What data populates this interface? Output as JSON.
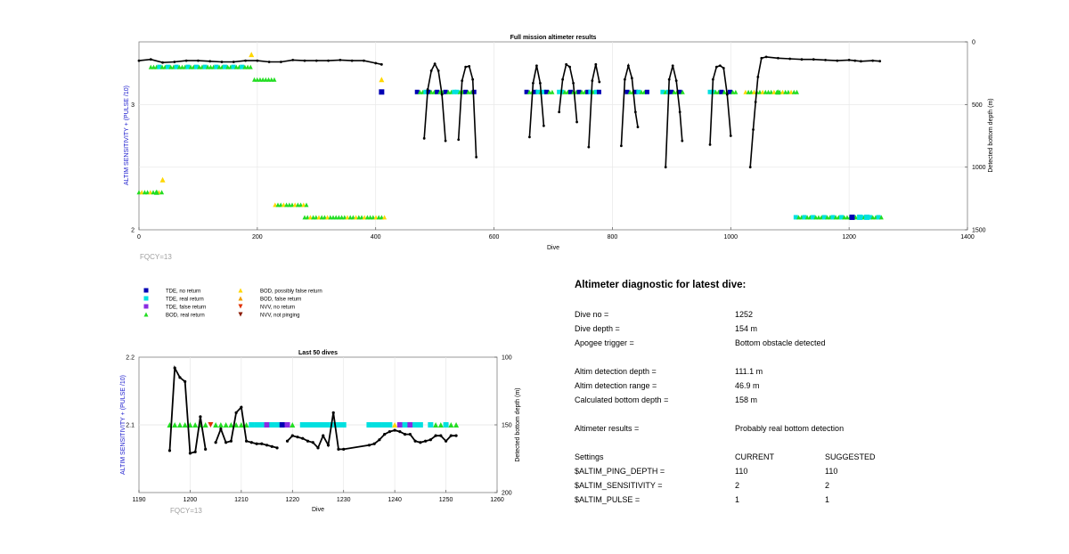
{
  "chart_data": [
    {
      "type": "scatter",
      "title": "Full mission altimeter results",
      "xlabel": "Dive",
      "ylabel_left": "ALTIM SENSITIVITY + (PULSE /10)",
      "ylabel_right": "Detected bottom depth (m)",
      "xlim": [
        0,
        1400
      ],
      "ylim_left": [
        2,
        3.5
      ],
      "ylim_right": [
        1500,
        0
      ],
      "xticks": [
        "0",
        "200",
        "400",
        "600",
        "800",
        "1000",
        "1200",
        "1400"
      ],
      "yticks_left": [
        "2",
        "3"
      ],
      "yticks_right": [
        "0",
        "500",
        "1000",
        "1500"
      ],
      "grid": true,
      "note": "FQCY=13",
      "depth_series": {
        "segments": [
          {
            "x": [
              0,
              20,
              40,
              60,
              80,
              100,
              120,
              140,
              160,
              180,
              200,
              220,
              240,
              260,
              280,
              300,
              320,
              340,
              360,
              380,
              400,
              410
            ],
            "y": [
              150,
              140,
              165,
              160,
              150,
              150,
              155,
              160,
              160,
              150,
              150,
              160,
              160,
              145,
              150,
              150,
              150,
              145,
              150,
              150,
              170,
              180
            ]
          },
          {
            "x": [
              482,
              488,
              494,
              500,
              506,
              512,
              518
            ],
            "y": [
              770,
              380,
              230,
              175,
              230,
              420,
              790
            ]
          },
          {
            "x": [
              540,
              546,
              552,
              558,
              564,
              570
            ],
            "y": [
              780,
              310,
              200,
              195,
              300,
              920
            ]
          },
          {
            "x": [
              660,
              666,
              672,
              678,
              684
            ],
            "y": [
              760,
              330,
              190,
              330,
              670
            ]
          },
          {
            "x": [
              710,
              716,
              722,
              728,
              734,
              740
            ],
            "y": [
              560,
              300,
              180,
              200,
              330,
              640
            ]
          },
          {
            "x": [
              760,
              766,
              772,
              778
            ],
            "y": [
              840,
              310,
              180,
              320
            ]
          },
          {
            "x": [
              815,
              821,
              827,
              833,
              839,
              843
            ],
            "y": [
              830,
              300,
              190,
              290,
              560,
              680
            ]
          },
          {
            "x": [
              890,
              896,
              902,
              908,
              914,
              918
            ],
            "y": [
              1000,
              300,
              190,
              310,
              560,
              790
            ]
          },
          {
            "x": [
              965,
              970,
              976,
              982,
              988,
              994,
              1000
            ],
            "y": [
              820,
              300,
              200,
              190,
              210,
              420,
              750
            ]
          },
          {
            "x": [
              1033,
              1038,
              1042,
              1046,
              1052,
              1060,
              1080,
              1100,
              1120,
              1140,
              1160,
              1180,
              1200,
              1210,
              1220,
              1240,
              1252
            ],
            "y": [
              1000,
              700,
              480,
              280,
              130,
              120,
              130,
              135,
              140,
              140,
              145,
              150,
              145,
              150,
              155,
              150,
              154
            ]
          }
        ]
      },
      "markers": [
        {
          "x": [
            410,
            1205
          ],
          "y": [
            3.1,
            2.1
          ],
          "label": "TDE, no return"
        },
        {
          "x": [
            1218,
            1230
          ],
          "y": [
            2.1,
            2.1
          ],
          "label": "TDE, real return"
        },
        {
          "x": [
            30,
            1080
          ],
          "y": [
            2.3,
            3.1
          ],
          "label": "BOD, real return"
        },
        {
          "x": [
            190,
            40,
            410
          ],
          "y": [
            3.4,
            2.4,
            3.2
          ],
          "label": "BOD, possibly false return"
        }
      ],
      "bands": [
        {
          "x": [
            20,
            190
          ],
          "y": 3.3,
          "kind": "mixed-cyan-green"
        },
        {
          "x": [
            195,
            230
          ],
          "y": 3.2,
          "kind": "green"
        },
        {
          "x": [
            470,
            570
          ],
          "y": 3.1,
          "kind": "blue-cyan-green"
        },
        {
          "x": [
            655,
            700
          ],
          "y": 3.1,
          "kind": "blue-cyan-green"
        },
        {
          "x": [
            710,
            780
          ],
          "y": 3.1,
          "kind": "blue-cyan-green"
        },
        {
          "x": [
            825,
            860
          ],
          "y": 3.1,
          "kind": "blue-cyan-green"
        },
        {
          "x": [
            885,
            920
          ],
          "y": 3.1,
          "kind": "blue-cyan-green"
        },
        {
          "x": [
            965,
            1010
          ],
          "y": 3.1,
          "kind": "blue-cyan-green"
        },
        {
          "x": [
            1025,
            1115
          ],
          "y": 3.1,
          "kind": "green-yellow"
        },
        {
          "x": [
            0,
            40
          ],
          "y": 2.3,
          "kind": "green-yellow"
        },
        {
          "x": [
            230,
            285
          ],
          "y": 2.2,
          "kind": "green-yellow"
        },
        {
          "x": [
            280,
            415
          ],
          "y": 2.1,
          "kind": "green-yellow"
        },
        {
          "x": [
            1110,
            1255
          ],
          "y": 2.1,
          "kind": "green-cyan"
        }
      ]
    },
    {
      "type": "scatter",
      "title": "Last 50 dives",
      "xlabel": "Dive",
      "ylabel_left": "ALTIM SENSITIVITY + (PULSE /10)",
      "ylabel_right": "Detected bottom depth (m)",
      "xlim": [
        1190,
        1260
      ],
      "ylim_left": [
        2,
        2.2
      ],
      "ylim_right": [
        200,
        100
      ],
      "xticks": [
        "1190",
        "1200",
        "1210",
        "1220",
        "1230",
        "1240",
        "1250",
        "1260"
      ],
      "yticks_left": [
        "2.1",
        "2.2"
      ],
      "yticks_right": [
        "100",
        "150",
        "200"
      ],
      "grid": true,
      "note": "FQCY=13",
      "depth_series": {
        "segments": [
          {
            "x": [
              1196,
              1197,
              1198,
              1199,
              1200,
              1201,
              1202,
              1203
            ],
            "y": [
              169,
              108,
              115,
              118,
              171,
              170,
              144,
              168
            ]
          },
          {
            "x": [
              1205,
              1206,
              1207,
              1208,
              1209,
              1210,
              1211,
              1212,
              1213,
              1214,
              1215,
              1216,
              1217
            ],
            "y": [
              163,
              153,
              163,
              162,
              141,
              137,
              162,
              163,
              164,
              164,
              165,
              166,
              167
            ]
          },
          {
            "x": [
              1219,
              1220,
              1221,
              1222,
              1223,
              1224,
              1225,
              1226,
              1227,
              1228,
              1229,
              1230,
              1235,
              1236,
              1237,
              1238,
              1239,
              1240,
              1241,
              1242,
              1243,
              1244,
              1245,
              1246,
              1247,
              1248,
              1249,
              1250,
              1251,
              1252
            ],
            "y": [
              162,
              158,
              159,
              160,
              162,
              163,
              167,
              158,
              165,
              141,
              168,
              168,
              165,
              164,
              161,
              157,
              155,
              154,
              155,
              157,
              157,
              162,
              163,
              162,
              161,
              158,
              158,
              162,
              158,
              158
            ]
          }
        ]
      },
      "marker_row": {
        "y": 2.1,
        "x": [
          1196,
          1197,
          1198,
          1199,
          1200,
          1201,
          1202,
          1203,
          1204,
          1205,
          1206,
          1207,
          1208,
          1209,
          1210,
          1211,
          1212,
          1213,
          1214,
          1215,
          1216,
          1217,
          1218,
          1219,
          1220,
          1222,
          1223,
          1224,
          1225,
          1226,
          1227,
          1228,
          1229,
          1230,
          1235,
          1236,
          1237,
          1238,
          1239,
          1240,
          1241,
          1242,
          1243,
          1244,
          1245,
          1247,
          1248,
          1249,
          1250,
          1251,
          1252
        ],
        "kinds": [
          "g",
          "g",
          "g",
          "g",
          "g",
          "g",
          "g",
          "g",
          "nvv",
          "g",
          "g",
          "g",
          "g",
          "g",
          "g",
          "g",
          "c",
          "c",
          "c",
          "p",
          "c",
          "c",
          "b",
          "p",
          "g",
          "c",
          "c",
          "c",
          "c",
          "c",
          "c",
          "c",
          "c",
          "c",
          "c",
          "c",
          "c",
          "c",
          "c",
          "y",
          "p",
          "c",
          "p",
          "c",
          "c",
          "c",
          "g",
          "g",
          "c",
          "g",
          "g"
        ]
      }
    }
  ],
  "legend": [
    {
      "label": "TDE, no return",
      "color": "#0000b4",
      "shape": "square"
    },
    {
      "label": "TDE, real return",
      "color": "#00e0e0",
      "shape": "square"
    },
    {
      "label": "TDE, false return",
      "color": "#8a2be2",
      "shape": "square"
    },
    {
      "label": "BOD, real return",
      "color": "#22dd22",
      "shape": "triangle-up"
    },
    {
      "label": "BOD, possibly false return",
      "color": "#ffd700",
      "shape": "triangle-up"
    },
    {
      "label": "BOD, false return",
      "color": "#f0a000",
      "shape": "triangle-up"
    },
    {
      "label": "NVV, no return",
      "color": "#e03000",
      "shape": "triangle-down"
    },
    {
      "label": "NVV, not pinging",
      "color": "#8b1a00",
      "shape": "triangle-down"
    }
  ],
  "diagnostic": {
    "title": "Altimeter diagnostic for latest dive:",
    "rows": [
      {
        "label": "Dive no =",
        "value": "1252"
      },
      {
        "label": "Dive depth =",
        "value": "154 m"
      },
      {
        "label": "Apogee trigger =",
        "value": "Bottom obstacle detected"
      },
      {
        "label": "Altim detection depth =",
        "value": "111.1 m"
      },
      {
        "label": "Altim detection range =",
        "value": "46.9 m"
      },
      {
        "label": "Calculated bottom depth =",
        "value": "158 m"
      },
      {
        "label": "Altimeter results =",
        "value": "Probably real bottom detection"
      }
    ],
    "settings_header": {
      "label": "Settings",
      "current": "CURRENT",
      "suggested": "SUGGESTED"
    },
    "settings": [
      {
        "label": "$ALTIM_PING_DEPTH =",
        "current": "110",
        "suggested": "110"
      },
      {
        "label": "$ALTIM_SENSITIVITY =",
        "current": "2",
        "suggested": "2"
      },
      {
        "label": "$ALTIM_PULSE =",
        "current": "1",
        "suggested": "1"
      }
    ]
  },
  "colors": {
    "axis_left_label": "#1a1acd",
    "note": "#a0a0a0",
    "line": "#000000"
  }
}
